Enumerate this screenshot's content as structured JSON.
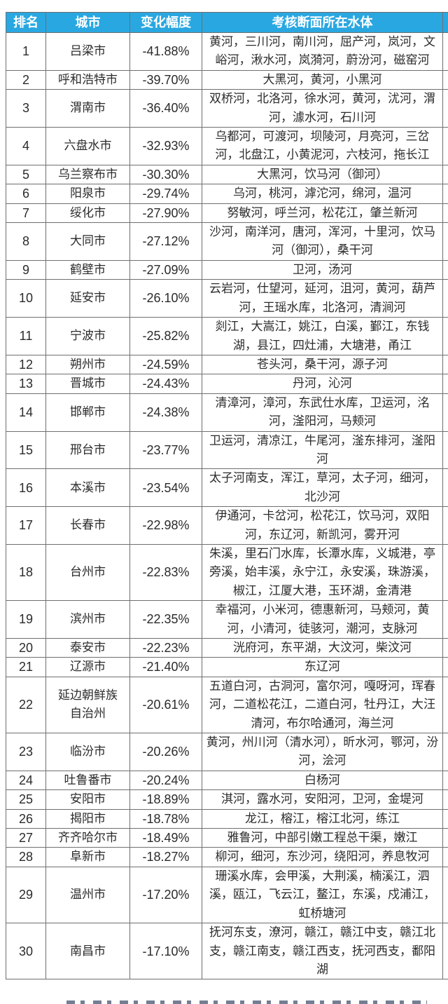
{
  "table": {
    "header": {
      "rank": "排名",
      "city": "城市",
      "change": "变化幅度",
      "water": "考核断面所在水体"
    },
    "header_bg_color": "#29a7e1",
    "header_text_color": "#ffffff",
    "border_color": "#6f6f6f",
    "rows": [
      {
        "rank": "1",
        "city": "吕梁市",
        "change": "-41.88%",
        "water": "黄河，三川河，南川河，屈产河，岚河，文峪河，湫水河，岚漪河，蔚汾河，磁窑河"
      },
      {
        "rank": "2",
        "city": "呼和浩特市",
        "change": "-39.70%",
        "water": "大黑河，黄河，小黑河"
      },
      {
        "rank": "3",
        "city": "渭南市",
        "change": "-36.40%",
        "water": "双桥河，北洛河，徐水河，黄河，沋河，渭河，澽水河，石川河"
      },
      {
        "rank": "4",
        "city": "六盘水市",
        "change": "-32.93%",
        "water": "乌都河，可渡河，坝陵河，月亮河，三岔河，北盘江，小黄泥河，六枝河，拖长江"
      },
      {
        "rank": "5",
        "city": "乌兰察布市",
        "change": "-30.30%",
        "water": "大黑河，饮马河（御河）"
      },
      {
        "rank": "6",
        "city": "阳泉市",
        "change": "-29.74%",
        "water": "乌河，桃河，滹沱河，绵河，温河"
      },
      {
        "rank": "7",
        "city": "绥化市",
        "change": "-27.90%",
        "water": "努敏河，呼兰河，松花江，肇兰新河"
      },
      {
        "rank": "8",
        "city": "大同市",
        "change": "-27.12%",
        "water": "沙河，南洋河，唐河，浑河，十里河，饮马河（御河），桑干河"
      },
      {
        "rank": "9",
        "city": "鹤壁市",
        "change": "-27.09%",
        "water": "卫河，汤河"
      },
      {
        "rank": "10",
        "city": "延安市",
        "change": "-26.10%",
        "water": "云岩河，仕望河，延河，沮河，黄河，葫芦河，王瑶水库，北洛河，清涧河"
      },
      {
        "rank": "11",
        "city": "宁波市",
        "change": "-25.82%",
        "water": "剡江，大嵩江，姚江，白溪，鄞江，东钱湖，县江，四灶浦，大塘港，甬江"
      },
      {
        "rank": "12",
        "city": "朔州市",
        "change": "-24.59%",
        "water": "苍头河，桑干河，源子河"
      },
      {
        "rank": "13",
        "city": "晋城市",
        "change": "-24.43%",
        "water": "丹河，沁河"
      },
      {
        "rank": "14",
        "city": "邯郸市",
        "change": "-24.38%",
        "water": "清漳河，漳河，东武仕水库，卫运河，洺河，滏阳河，马颊河"
      },
      {
        "rank": "15",
        "city": "邢台市",
        "change": "-23.77%",
        "water": "卫运河，清凉江，牛尾河，滏东排河，滏阳河"
      },
      {
        "rank": "16",
        "city": "本溪市",
        "change": "-23.54%",
        "water": "太子河南支，浑江，草河，太子河，细河，北沙河"
      },
      {
        "rank": "17",
        "city": "长春市",
        "change": "-22.98%",
        "water": "伊通河，卡岔河，松花江，饮马河，双阳河，东辽河，新凯河，雾开河"
      },
      {
        "rank": "18",
        "city": "台州市",
        "change": "-22.83%",
        "water": "朱溪，里石门水库，长潭水库，义城港，亭旁溪，始丰溪，永宁江，永安溪，珠游溪，椒江，江厦大港，玉环湖，金清港"
      },
      {
        "rank": "19",
        "city": "滨州市",
        "change": "-22.35%",
        "water": "幸福河，小米河，德惠新河，马颊河，黄河，小清河，徒骇河，潮河，支脉河"
      },
      {
        "rank": "20",
        "city": "泰安市",
        "change": "-22.23%",
        "water": "洸府河，东平湖，大汶河，柴汶河"
      },
      {
        "rank": "21",
        "city": "辽源市",
        "change": "-21.40%",
        "water": "东辽河"
      },
      {
        "rank": "22",
        "city": "延边朝鲜族\n自治州",
        "change": "-20.61%",
        "water": "五道白河，古洞河，富尔河，嘎呀河，珲春河，二道松花江，二道白河，牡丹江，大汪清河，布尔哈通河，海兰河"
      },
      {
        "rank": "23",
        "city": "临汾市",
        "change": "-20.26%",
        "water": "黄河，州川河（清水河），昕水河，鄂河，汾河，浍河"
      },
      {
        "rank": "24",
        "city": "吐鲁番市",
        "change": "-20.24%",
        "water": "白杨河"
      },
      {
        "rank": "25",
        "city": "安阳市",
        "change": "-18.89%",
        "water": "淇河，露水河，安阳河，卫河，金堤河"
      },
      {
        "rank": "26",
        "city": "揭阳市",
        "change": "-18.78%",
        "water": "龙江，榕江，榕江北河，练江"
      },
      {
        "rank": "27",
        "city": "齐齐哈尔市",
        "change": "-18.49%",
        "water": "雅鲁河，中部引嫩工程总干渠，嫩江"
      },
      {
        "rank": "28",
        "city": "阜新市",
        "change": "-18.27%",
        "water": "柳河，细河，东沙河，绕阳河，养息牧河"
      },
      {
        "rank": "29",
        "city": "温州市",
        "change": "-17.20%",
        "water": "珊溪水库，会甲溪，大荆溪，楠溪江，泗溪，瓯江，飞云江，鳌江，东溪，戍浦江，虹桥塘河"
      },
      {
        "rank": "30",
        "city": "南昌市",
        "change": "-17.10%",
        "water": "抚河东支，潦河，赣江，赣江中支，赣江北支，赣江南支，赣江西支，抚河西支，鄱阳湖"
      }
    ]
  }
}
